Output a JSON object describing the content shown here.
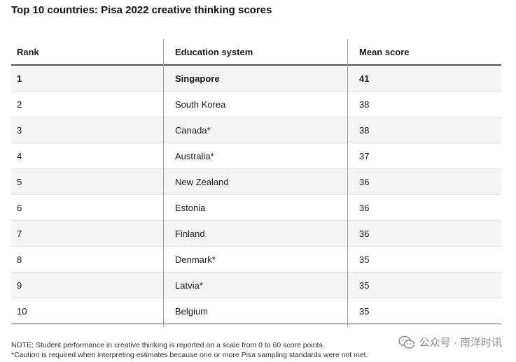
{
  "chart_data": {
    "type": "table",
    "title": "Top 10 countries: Pisa 2022 creative thinking scores",
    "columns": [
      "Rank",
      "Education system",
      "Mean score"
    ],
    "rows": [
      {
        "rank": "1",
        "system": "Singapore",
        "score": "41"
      },
      {
        "rank": "2",
        "system": "South Korea",
        "score": "38"
      },
      {
        "rank": "3",
        "system": "Canada*",
        "score": "38"
      },
      {
        "rank": "4",
        "system": "Australia*",
        "score": "37"
      },
      {
        "rank": "5",
        "system": "New Zealand",
        "score": "36"
      },
      {
        "rank": "6",
        "system": "Estonia",
        "score": "36"
      },
      {
        "rank": "7",
        "system": "Finland",
        "score": "36"
      },
      {
        "rank": "8",
        "system": "Denmark*",
        "score": "35"
      },
      {
        "rank": "9",
        "system": "Latvia*",
        "score": "35"
      },
      {
        "rank": "10",
        "system": "Belgium",
        "score": "35"
      }
    ],
    "notes": [
      "NOTE: Student performance in creative thinking is reported on a scale from 0 to 60 score points.",
      "*Caution is required when interpreting estimates because one or more Pisa sampling standards were not met."
    ]
  },
  "watermark": {
    "text": "公众号 · 南洋时讯",
    "icon": "wechat-icon"
  },
  "colors": {
    "row_alt": "#f4f4f4",
    "rule": "#555555"
  }
}
